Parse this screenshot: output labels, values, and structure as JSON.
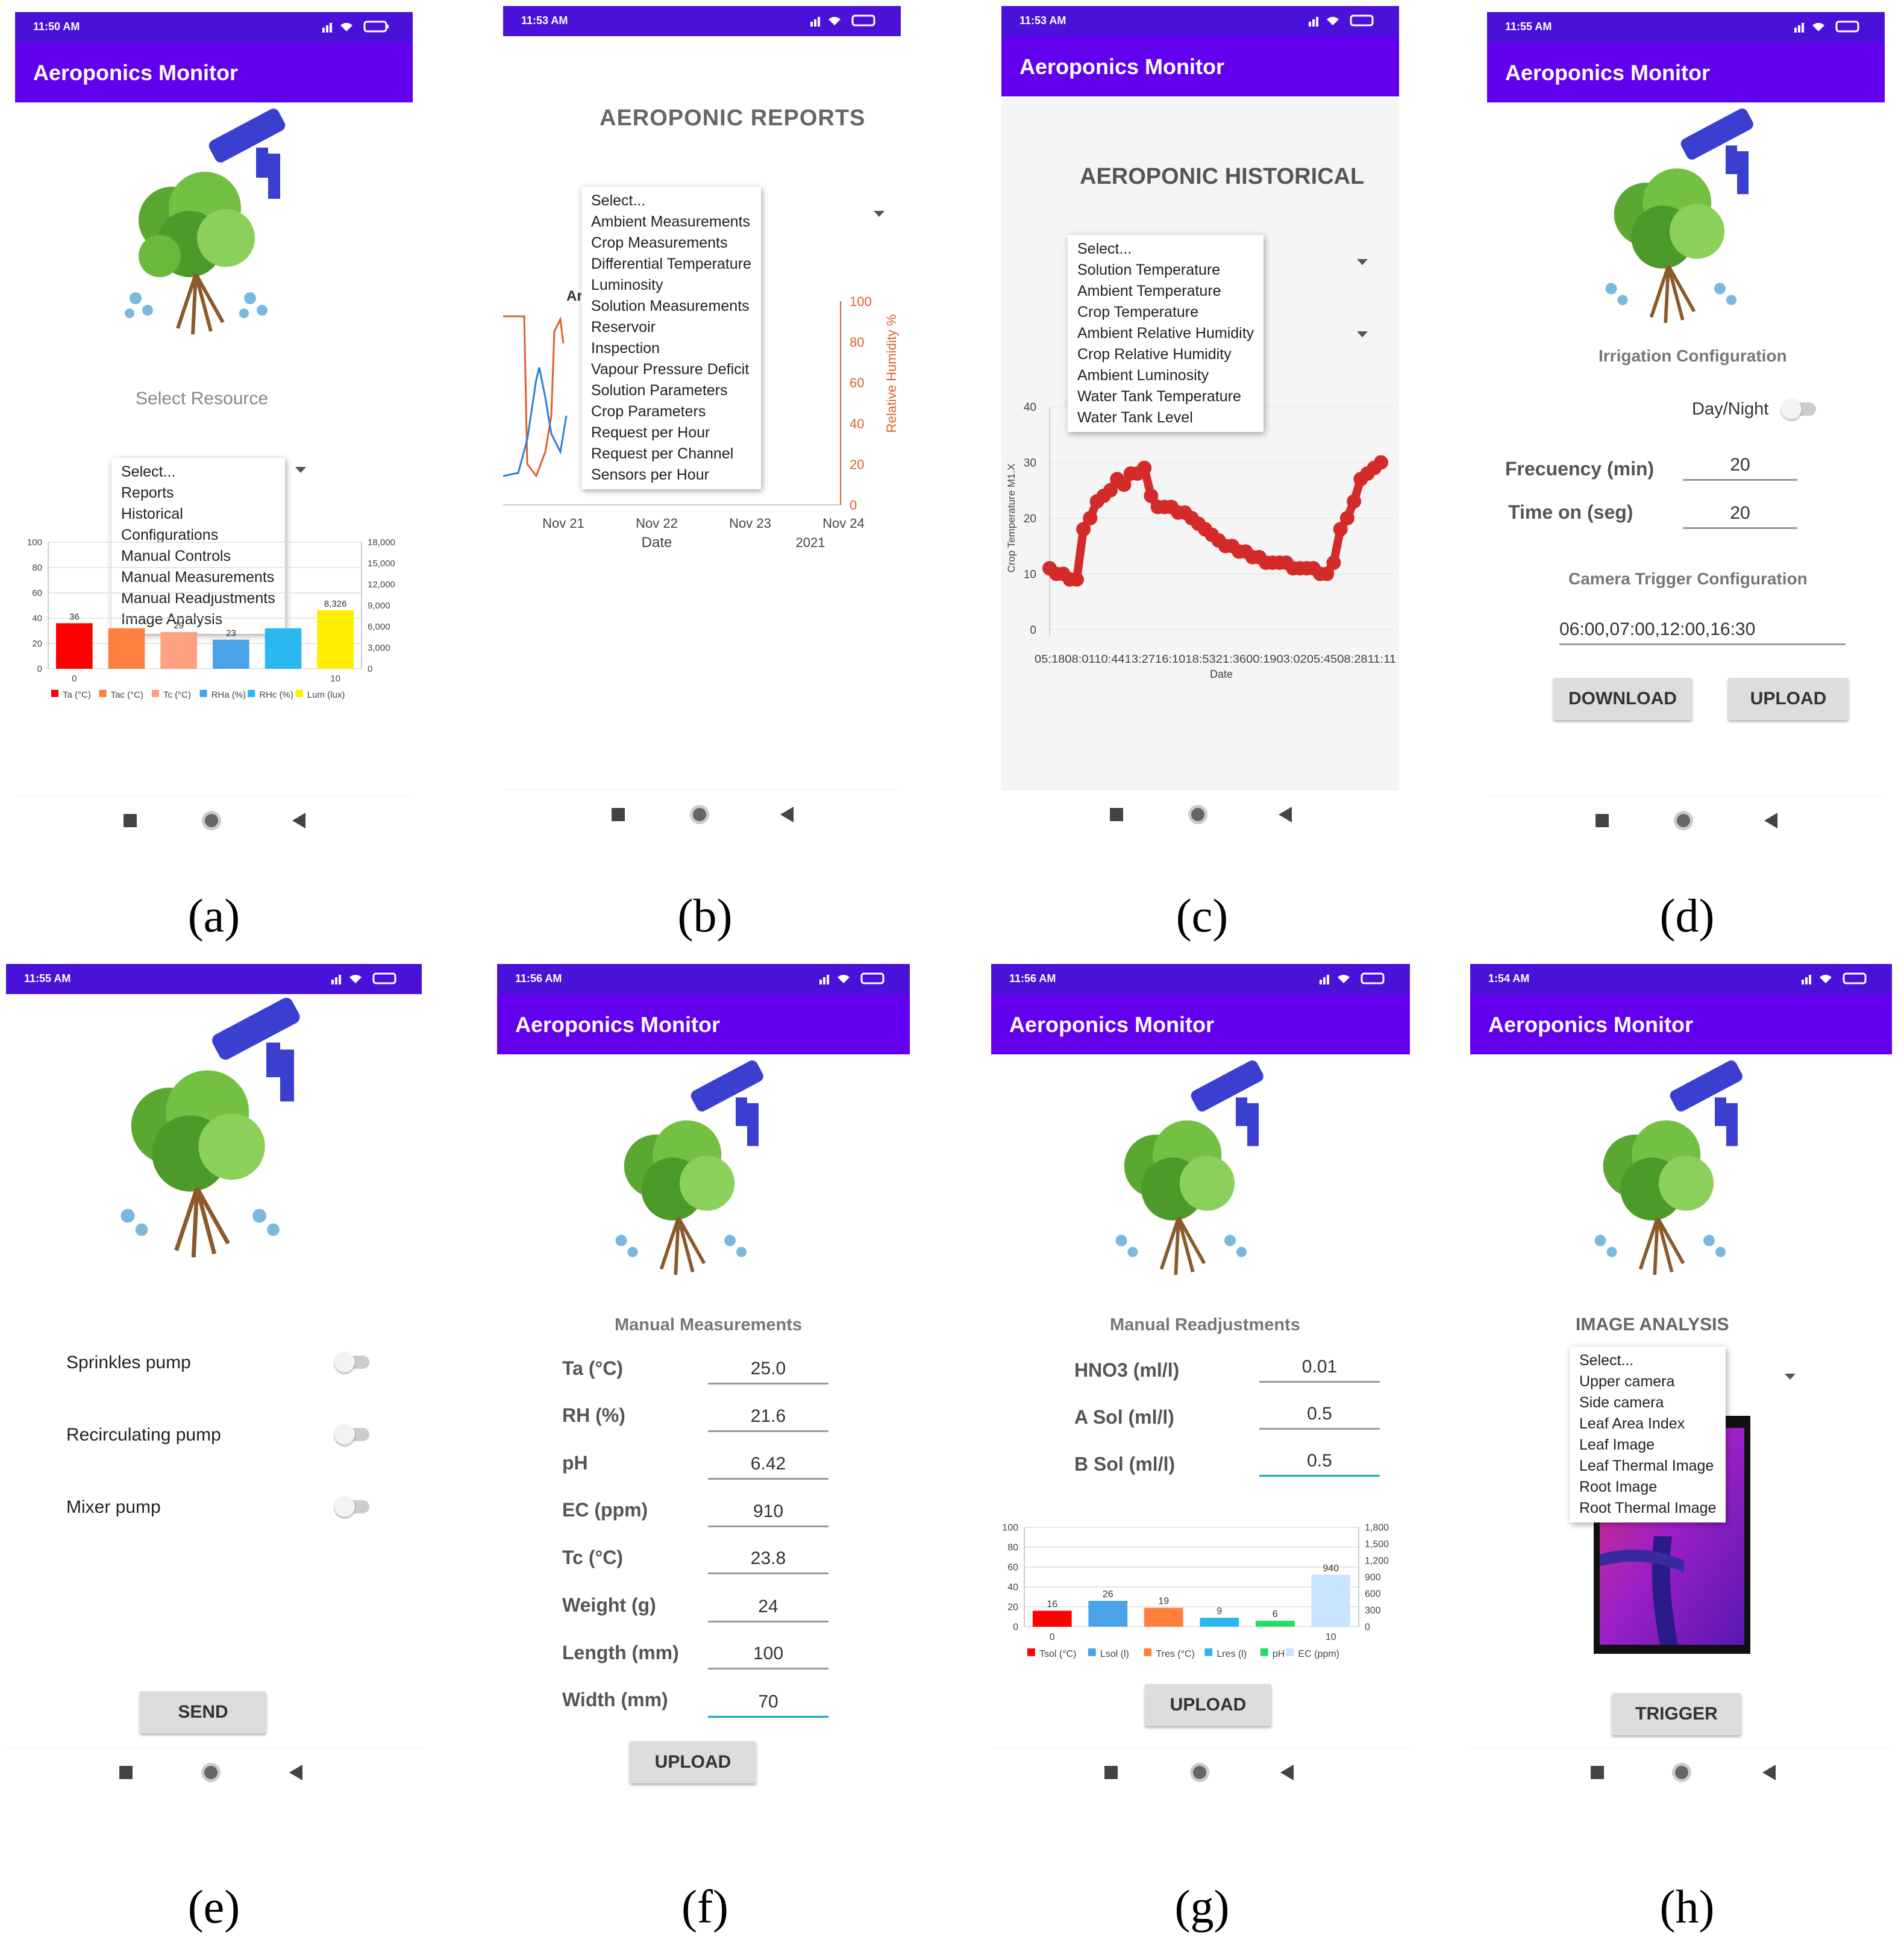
{
  "captions": [
    "(a)",
    "(b)",
    "(c)",
    "(d)",
    "(e)",
    "(f)",
    "(g)",
    "(h)"
  ],
  "app_title": "Aeroponics Monitor",
  "status_times": [
    "11:50 AM",
    "11:53 AM",
    "11:53 AM",
    "11:55 AM",
    "11:55 AM",
    "11:56 AM",
    "11:56 AM",
    "1:54 AM"
  ],
  "screen_a": {
    "select_resource": "Select Resource",
    "menu": [
      "Select...",
      "Reports",
      "Historical",
      "Configurations",
      "Manual Controls",
      "Manual Measurements",
      "Manual Readjustments",
      "Image Analysis"
    ],
    "chart_data": {
      "type": "bar",
      "categories": [
        "Ta (°C)",
        "Tac (°C)",
        "Tc (°C)",
        "RHa (%)",
        "RHc (%)",
        "Lum (lux)"
      ],
      "values": [
        36,
        32,
        29,
        23,
        32,
        8326
      ],
      "data_labels": [
        "36",
        "",
        "29",
        "23",
        "",
        "8,326"
      ],
      "colors": [
        "#ff0000",
        "#ff7f3f",
        "#ffa080",
        "#4aa3e8",
        "#2bb8f0",
        "#ffee00"
      ],
      "left_ticks": [
        "100",
        "80",
        "60",
        "40",
        "20",
        "0"
      ],
      "right_ticks": [
        "18,000",
        "15,000",
        "12,000",
        "9,000",
        "6,000",
        "3,000",
        "0"
      ],
      "x_ticks": [
        "0",
        "10"
      ],
      "ylim_left": [
        0,
        100
      ],
      "ylim_right": [
        0,
        18000
      ]
    }
  },
  "screen_b": {
    "title": "AEROPONIC REPORTS",
    "menu": [
      "Select...",
      "Ambient Measurements",
      "Crop Measurements",
      "Differential Temperature",
      "Luminosity",
      "Solution Measurements",
      "Reservoir",
      "Inspection",
      "Vapour Pressure Deficit",
      "Solution Parameters",
      "Crop Parameters",
      "Request per Hour",
      "Request per Channel",
      "Sensors per Hour"
    ],
    "behind_title_fragment": "Ar",
    "chart_data": {
      "type": "line",
      "x_ticks": [
        "Nov 21",
        "Nov 22",
        "Nov 23",
        "Nov 24"
      ],
      "year_label": "2021",
      "xlabel": "Date",
      "ylabel_right": "Relative Humidity %",
      "right_ticks": [
        "100",
        "80",
        "60",
        "40",
        "20",
        "0"
      ]
    }
  },
  "screen_c": {
    "title": "AEROPONIC HISTORICAL",
    "menu": [
      "Select...",
      "Solution Temperature",
      "Ambient Temperature",
      "Crop Temperature",
      "Ambient Relative Humidity",
      "Crop Relative Humidity",
      "Ambient Luminosity",
      "Water Tank Temperature",
      "Water Tank Level"
    ],
    "chart_data": {
      "type": "line",
      "ylabel": "Crop Temperature M1.X",
      "xlabel": "Date",
      "y_ticks": [
        "40",
        "30",
        "20",
        "10",
        "0"
      ],
      "ylim": [
        0,
        40
      ],
      "x_ticks_text": "05:1808:0110:4413:2716:1018:5321:3600:1903:0205:4508:2811:11",
      "values": [
        11,
        10,
        10,
        9,
        9,
        18,
        20,
        23,
        24,
        25,
        27,
        26,
        28,
        28,
        29,
        24,
        22,
        22,
        22,
        21,
        21,
        20,
        19,
        18,
        17,
        16,
        15,
        15,
        14,
        14,
        13,
        13,
        12,
        12,
        12,
        12,
        11,
        11,
        11,
        11,
        10,
        10,
        12,
        18,
        20,
        23,
        27,
        28,
        29,
        30
      ]
    }
  },
  "screen_d": {
    "irrigation_label": "Irrigation Configuration",
    "day_night": "Day/Night",
    "frequency_label": "Frecuency (min)",
    "frequency_value": "20",
    "time_on_label": "Time on (seg)",
    "time_on_value": "20",
    "camera_label": "Camera Trigger Configuration",
    "camera_value": "06:00,07:00,12:00,16:30",
    "download": "DOWNLOAD",
    "upload": "UPLOAD"
  },
  "screen_e": {
    "pumps": [
      "Sprinkles pump",
      "Recirculating pump",
      "Mixer pump"
    ],
    "send": "SEND"
  },
  "screen_f": {
    "title": "Manual Measurements",
    "fields": [
      {
        "label": "Ta (°C)",
        "value": "25.0"
      },
      {
        "label": "RH (%)",
        "value": "21.6"
      },
      {
        "label": "pH",
        "value": "6.42"
      },
      {
        "label": "EC (ppm)",
        "value": "910"
      },
      {
        "label": "Tc (°C)",
        "value": "23.8"
      },
      {
        "label": "Weight (g)",
        "value": "24"
      },
      {
        "label": "Length (mm)",
        "value": "100"
      },
      {
        "label": "Width (mm)",
        "value": "70"
      }
    ],
    "upload": "UPLOAD"
  },
  "screen_g": {
    "title": "Manual Readjustments",
    "fields": [
      {
        "label": "HNO3 (ml/l)",
        "value": "0.01"
      },
      {
        "label": "A Sol (ml/l)",
        "value": "0.5"
      },
      {
        "label": "B Sol (ml/l)",
        "value": "0.5"
      }
    ],
    "upload": "UPLOAD",
    "chart_data": {
      "type": "bar",
      "categories": [
        "Tsol (°C)",
        "Lsol (l)",
        "Tres (°C)",
        "Lres (l)",
        "pH",
        "EC (ppm)"
      ],
      "values": [
        16,
        26,
        19,
        9,
        6,
        940
      ],
      "data_labels": [
        "16",
        "26",
        "19",
        "9",
        "6",
        "940"
      ],
      "colors": [
        "#ff0000",
        "#4aa3e8",
        "#ff7f3f",
        "#2bb8f0",
        "#22dd66",
        "#c8e4ff"
      ],
      "left_ticks": [
        "100",
        "80",
        "60",
        "40",
        "20",
        "0"
      ],
      "right_ticks": [
        "1,800",
        "1,500",
        "1,200",
        "900",
        "600",
        "300",
        "0"
      ],
      "x_ticks": [
        "0",
        "10"
      ],
      "ylim_left": [
        0,
        100
      ],
      "ylim_right": [
        0,
        1800
      ]
    }
  },
  "screen_h": {
    "title": "IMAGE ANALYSIS",
    "menu": [
      "Select...",
      "Upper camera",
      "Side camera",
      "Leaf Area Index",
      "Leaf Image",
      "Leaf Thermal Image",
      "Root Image",
      "Root Thermal Image"
    ],
    "trigger": "TRIGGER"
  }
}
